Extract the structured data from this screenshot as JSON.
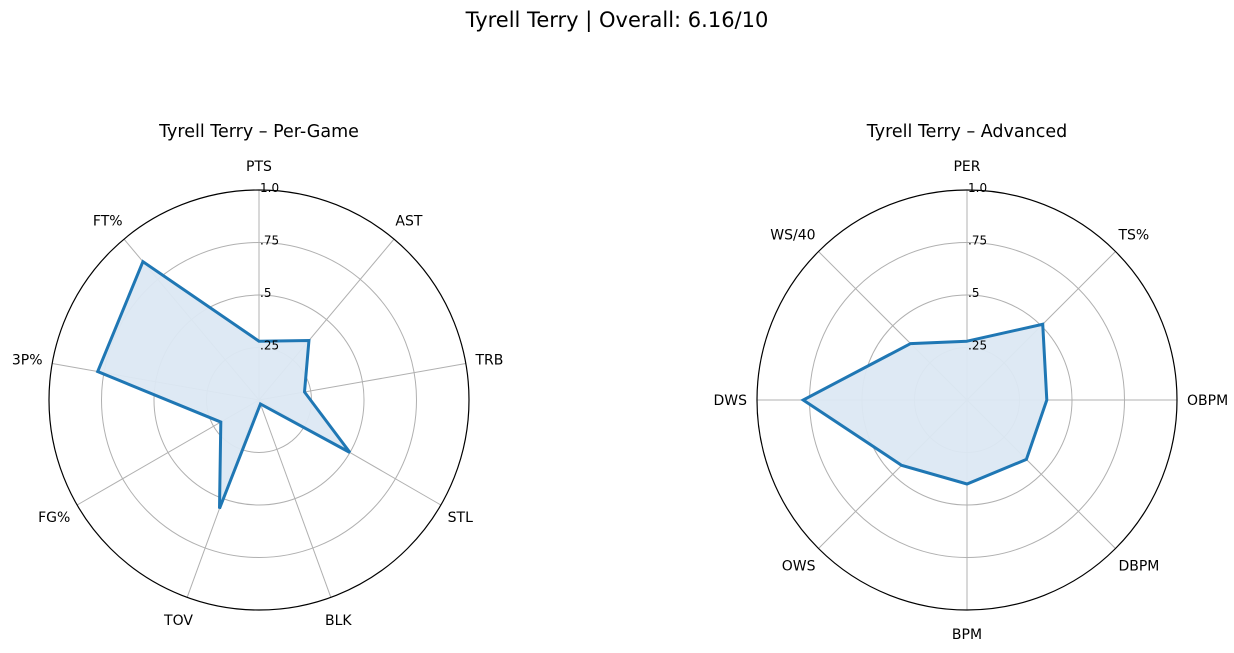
{
  "figure": {
    "title": "Tyrell Terry | Overall: 6.16/10"
  },
  "colors": {
    "series_line": "#1f77b4",
    "series_fill": "#dce8f3",
    "grid": "#b0b0b0",
    "frame": "#000000"
  },
  "chart_data": [
    {
      "type": "radar",
      "title": "Tyrell Terry – Per-Game",
      "categories": [
        "PTS",
        "AST",
        "TRB",
        "STL",
        "BLK",
        "TOV",
        "FG%",
        "3P%",
        "FT%"
      ],
      "values": [
        0.28,
        0.37,
        0.22,
        0.5,
        0.02,
        0.55,
        0.21,
        0.78,
        0.86
      ],
      "rlim": [
        0,
        1.0
      ],
      "radial_ticks": [
        0.25,
        0.5,
        0.75,
        1.0
      ],
      "radial_tick_labels": [
        ".25",
        ".5",
        ".75",
        "1.0"
      ],
      "grid": true
    },
    {
      "type": "radar",
      "title": "Tyrell Terry – Advanced",
      "categories": [
        "PER",
        "TS%",
        "OBPM",
        "DBPM",
        "BPM",
        "OWS",
        "DWS",
        "WS/40"
      ],
      "values": [
        0.28,
        0.51,
        0.38,
        0.4,
        0.4,
        0.44,
        0.78,
        0.38
      ],
      "rlim": [
        0,
        1.0
      ],
      "radial_ticks": [
        0.25,
        0.5,
        0.75,
        1.0
      ],
      "radial_tick_labels": [
        ".25",
        ".5",
        ".75",
        "1.0"
      ],
      "grid": true
    }
  ]
}
